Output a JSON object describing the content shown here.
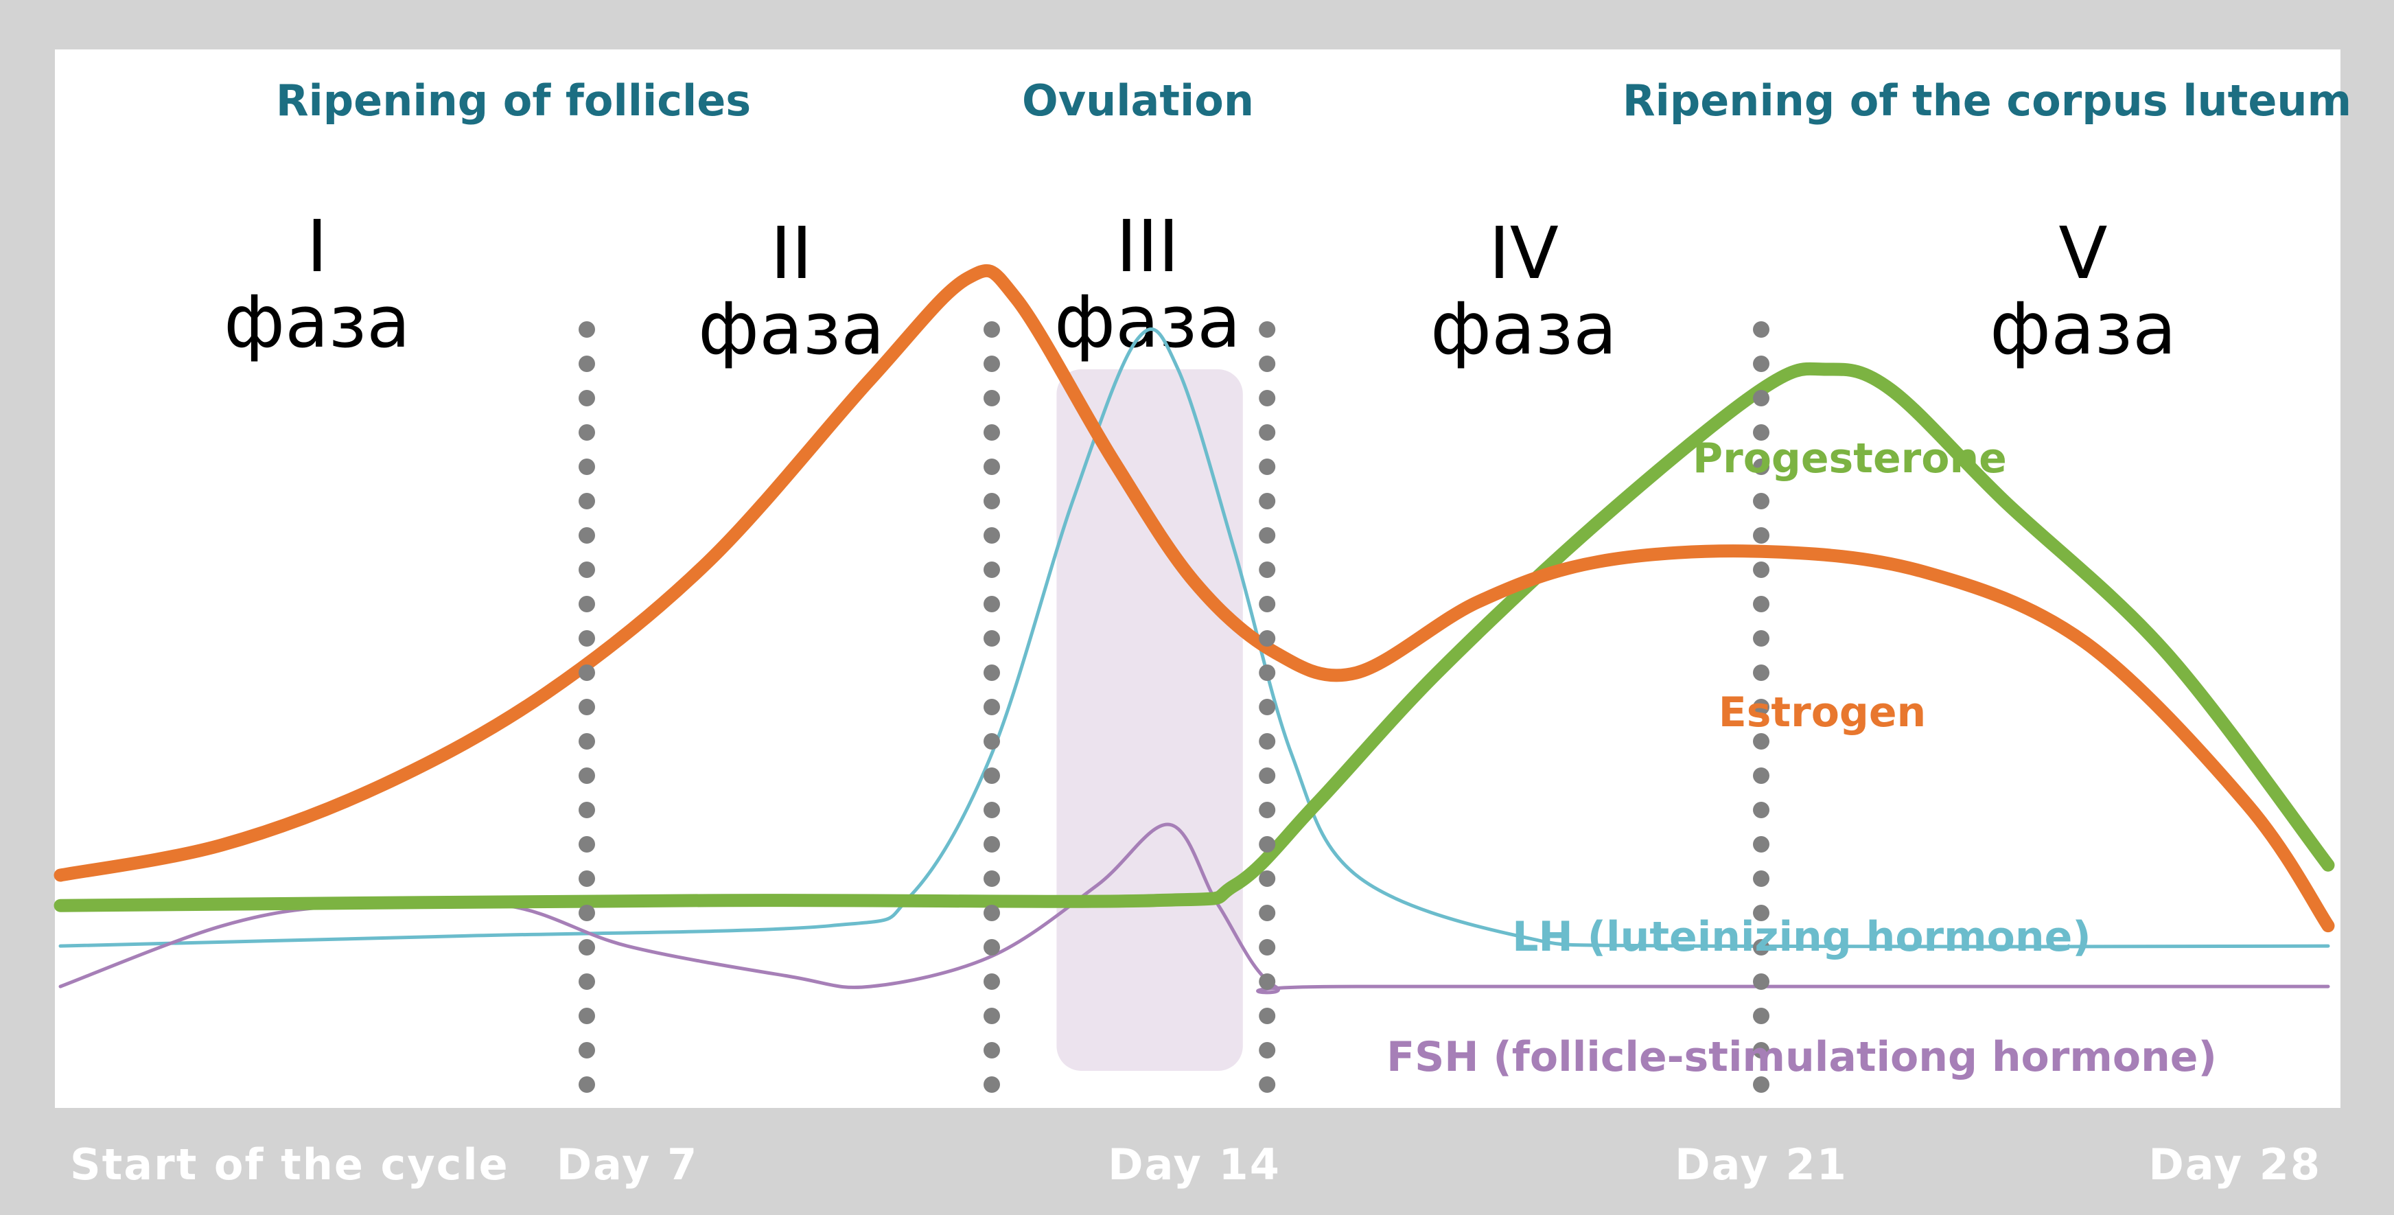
{
  "phases": {
    "titles": [
      "Ripening of follicles",
      "Ovulation",
      "Ripening of the corpus luteum"
    ],
    "labels": [
      {
        "numeral": "I",
        "word": "фаза"
      },
      {
        "numeral": "II",
        "word": "фаза"
      },
      {
        "numeral": "III",
        "word": "фаза"
      },
      {
        "numeral": "IV",
        "word": "фаза"
      },
      {
        "numeral": "V",
        "word": "фаза"
      }
    ]
  },
  "chart_data": {
    "type": "line",
    "x_unit": "day of cycle",
    "xlim": [
      0,
      28
    ],
    "ylim": [
      0,
      100
    ],
    "x_ticks": [
      {
        "x": 0,
        "label": "Start of the cycle"
      },
      {
        "x": 7,
        "label": "Day 7"
      },
      {
        "x": 14,
        "label": "Day 14"
      },
      {
        "x": 21,
        "label": "Day 21"
      },
      {
        "x": 28,
        "label": "Day 28"
      }
    ],
    "phase_boundaries": [
      6.5,
      11.5,
      14.9,
      21
    ],
    "ovulation_band": [
      12.3,
      14.6
    ],
    "series": [
      {
        "name": "Estrogen",
        "color": "#e8772e",
        "weight": "heavy",
        "points": [
          [
            0,
            23
          ],
          [
            2,
            26
          ],
          [
            4,
            32
          ],
          [
            6,
            41
          ],
          [
            8,
            54
          ],
          [
            10,
            72
          ],
          [
            11.2,
            82
          ],
          [
            11.8,
            80
          ],
          [
            13,
            64
          ],
          [
            14,
            52
          ],
          [
            15,
            45
          ],
          [
            16,
            43
          ],
          [
            17.5,
            50
          ],
          [
            19,
            54
          ],
          [
            21,
            55
          ],
          [
            23,
            53
          ],
          [
            25,
            46
          ],
          [
            27,
            30
          ],
          [
            28,
            18
          ]
        ]
      },
      {
        "name": "Progesterone",
        "color": "#7cb342",
        "weight": "heavy",
        "points": [
          [
            0,
            20
          ],
          [
            8,
            20.5
          ],
          [
            13.5,
            20.5
          ],
          [
            14.5,
            22
          ],
          [
            15.5,
            30
          ],
          [
            17,
            43
          ],
          [
            19,
            58
          ],
          [
            21,
            71
          ],
          [
            21.8,
            73
          ],
          [
            22.6,
            71
          ],
          [
            24,
            60
          ],
          [
            26,
            45
          ],
          [
            28,
            24
          ]
        ]
      },
      {
        "name": "LH (luteinizing hormone)",
        "color": "#6bbccc",
        "weight": "thin",
        "points": [
          [
            0,
            16
          ],
          [
            5,
            17
          ],
          [
            9.5,
            18
          ],
          [
            10.5,
            21
          ],
          [
            11.5,
            35
          ],
          [
            12.5,
            60
          ],
          [
            13.3,
            76
          ],
          [
            13.8,
            73
          ],
          [
            14.5,
            55
          ],
          [
            15.2,
            35
          ],
          [
            16,
            23
          ],
          [
            18,
            17
          ],
          [
            20,
            16
          ],
          [
            28,
            16
          ]
        ]
      },
      {
        "name": "FSH (follicle-stimulationg hormone)",
        "color": "#a67fb7",
        "weight": "thin",
        "points": [
          [
            0,
            12
          ],
          [
            2,
            18
          ],
          [
            3.5,
            20
          ],
          [
            5.5,
            20
          ],
          [
            7,
            16
          ],
          [
            9,
            13
          ],
          [
            10,
            12
          ],
          [
            11.5,
            15
          ],
          [
            12.8,
            22
          ],
          [
            13.7,
            28
          ],
          [
            14.3,
            20
          ],
          [
            15,
            12
          ],
          [
            16,
            12
          ],
          [
            28,
            12
          ]
        ]
      }
    ]
  }
}
